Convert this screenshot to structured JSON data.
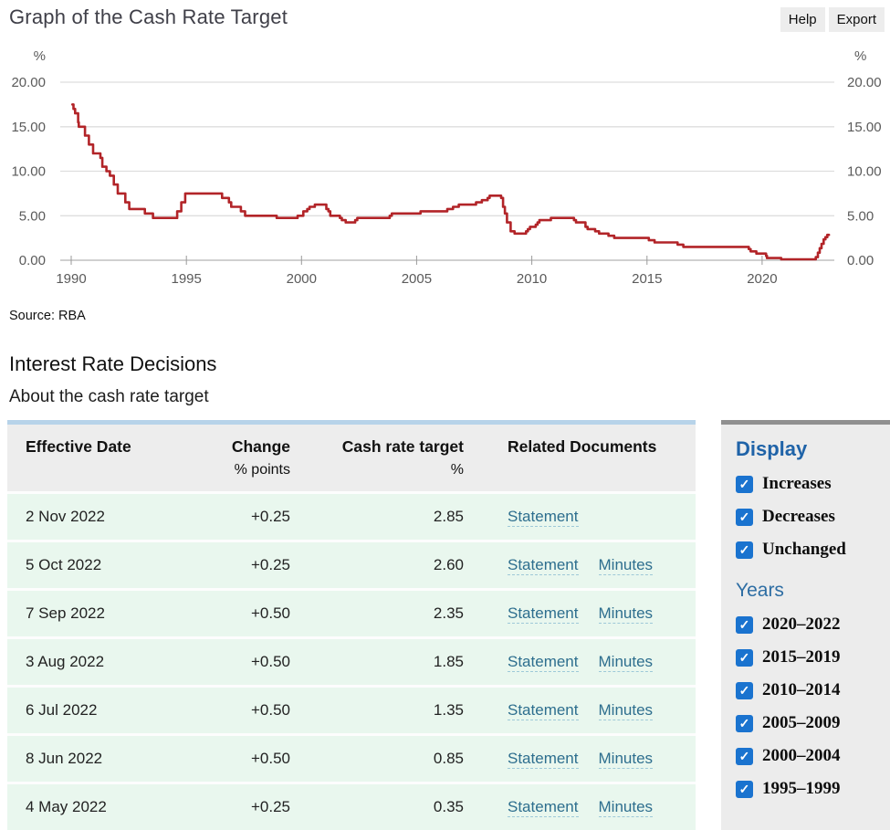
{
  "colors": {
    "accent_blue": "#1f63a8",
    "link": "#2d6e8e",
    "row_green": "#e9f7ee",
    "line_red": "#b22428",
    "table_top_border": "#b7d3e9",
    "sidebar_top_border": "#909090",
    "panel_bg": "#ececec",
    "checkbox_blue": "#1a73cf"
  },
  "header": {
    "title": "Graph of the Cash Rate Target",
    "help_label": "Help",
    "export_label": "Export"
  },
  "chart": {
    "left_unit": "%",
    "right_unit": "%",
    "y_ticks": [
      "20.00",
      "15.00",
      "10.00",
      "5.00",
      "0.00"
    ],
    "x_ticks": [
      "1990",
      "1995",
      "2000",
      "2005",
      "2010",
      "2015",
      "2020"
    ],
    "source": "Source: RBA"
  },
  "chart_data": {
    "type": "line",
    "title": "Graph of the Cash Rate Target",
    "xlabel": "",
    "ylabel": "%",
    "ylim": [
      0,
      20
    ],
    "x_range": [
      1989.8,
      2023.2
    ],
    "grid": true,
    "interpolation": "step-after",
    "series": [
      {
        "name": "Cash rate target (%)",
        "points": [
          [
            1990.05,
            17.5
          ],
          [
            1990.1,
            17.0
          ],
          [
            1990.17,
            16.5
          ],
          [
            1990.3,
            15.5
          ],
          [
            1990.33,
            15.0
          ],
          [
            1990.6,
            14.0
          ],
          [
            1990.77,
            13.0
          ],
          [
            1990.95,
            12.0
          ],
          [
            1991.27,
            11.5
          ],
          [
            1991.35,
            10.5
          ],
          [
            1991.53,
            10.0
          ],
          [
            1991.68,
            9.5
          ],
          [
            1991.85,
            8.5
          ],
          [
            1992.02,
            7.5
          ],
          [
            1992.35,
            6.5
          ],
          [
            1992.52,
            5.75
          ],
          [
            1993.2,
            5.25
          ],
          [
            1993.55,
            4.75
          ],
          [
            1994.6,
            5.5
          ],
          [
            1994.78,
            6.5
          ],
          [
            1994.95,
            7.5
          ],
          [
            1996.55,
            7.0
          ],
          [
            1996.85,
            6.5
          ],
          [
            1996.95,
            6.0
          ],
          [
            1997.37,
            5.5
          ],
          [
            1997.55,
            5.0
          ],
          [
            1998.92,
            4.75
          ],
          [
            1999.83,
            5.0
          ],
          [
            2000.08,
            5.5
          ],
          [
            2000.25,
            5.75
          ],
          [
            2000.35,
            6.0
          ],
          [
            2000.58,
            6.25
          ],
          [
            2001.08,
            5.75
          ],
          [
            2001.17,
            5.5
          ],
          [
            2001.25,
            5.0
          ],
          [
            2001.67,
            4.75
          ],
          [
            2001.75,
            4.5
          ],
          [
            2001.92,
            4.25
          ],
          [
            2002.33,
            4.5
          ],
          [
            2002.42,
            4.75
          ],
          [
            2003.83,
            5.0
          ],
          [
            2003.92,
            5.25
          ],
          [
            2005.17,
            5.5
          ],
          [
            2006.33,
            5.75
          ],
          [
            2006.58,
            6.0
          ],
          [
            2006.83,
            6.25
          ],
          [
            2007.58,
            6.5
          ],
          [
            2007.83,
            6.75
          ],
          [
            2008.08,
            7.0
          ],
          [
            2008.17,
            7.25
          ],
          [
            2008.67,
            7.0
          ],
          [
            2008.75,
            6.0
          ],
          [
            2008.83,
            5.25
          ],
          [
            2008.92,
            4.25
          ],
          [
            2009.08,
            3.25
          ],
          [
            2009.25,
            3.0
          ],
          [
            2009.75,
            3.25
          ],
          [
            2009.83,
            3.5
          ],
          [
            2009.92,
            3.75
          ],
          [
            2010.17,
            4.0
          ],
          [
            2010.25,
            4.25
          ],
          [
            2010.33,
            4.5
          ],
          [
            2010.83,
            4.75
          ],
          [
            2011.83,
            4.5
          ],
          [
            2011.92,
            4.25
          ],
          [
            2012.33,
            3.75
          ],
          [
            2012.42,
            3.5
          ],
          [
            2012.75,
            3.25
          ],
          [
            2012.92,
            3.0
          ],
          [
            2013.33,
            2.75
          ],
          [
            2013.58,
            2.5
          ],
          [
            2015.08,
            2.25
          ],
          [
            2015.33,
            2.0
          ],
          [
            2016.33,
            1.75
          ],
          [
            2016.58,
            1.5
          ],
          [
            2019.42,
            1.25
          ],
          [
            2019.5,
            1.0
          ],
          [
            2019.75,
            0.75
          ],
          [
            2020.17,
            0.5
          ],
          [
            2020.21,
            0.25
          ],
          [
            2020.83,
            0.1
          ],
          [
            2022.33,
            0.35
          ],
          [
            2022.42,
            0.85
          ],
          [
            2022.5,
            1.35
          ],
          [
            2022.58,
            1.85
          ],
          [
            2022.67,
            2.35
          ],
          [
            2022.75,
            2.6
          ],
          [
            2022.83,
            2.85
          ]
        ]
      }
    ]
  },
  "source": "Source: RBA",
  "sections": {
    "heading": "Interest Rate Decisions",
    "subheading": "About the cash rate target"
  },
  "table": {
    "columns": [
      {
        "label": "Effective Date",
        "sub": ""
      },
      {
        "label": "Change",
        "sub": "% points"
      },
      {
        "label": "Cash rate target",
        "sub": "%"
      },
      {
        "label": "Related Documents",
        "sub": ""
      }
    ],
    "rows": [
      {
        "date": "2 Nov 2022",
        "change": "+0.25",
        "target": "2.85",
        "links": [
          "Statement"
        ]
      },
      {
        "date": "5 Oct 2022",
        "change": "+0.25",
        "target": "2.60",
        "links": [
          "Statement",
          "Minutes"
        ]
      },
      {
        "date": "7 Sep 2022",
        "change": "+0.50",
        "target": "2.35",
        "links": [
          "Statement",
          "Minutes"
        ]
      },
      {
        "date": "3 Aug 2022",
        "change": "+0.50",
        "target": "1.85",
        "links": [
          "Statement",
          "Minutes"
        ]
      },
      {
        "date": "6 Jul 2022",
        "change": "+0.50",
        "target": "1.35",
        "links": [
          "Statement",
          "Minutes"
        ]
      },
      {
        "date": "8 Jun 2022",
        "change": "+0.50",
        "target": "0.85",
        "links": [
          "Statement",
          "Minutes"
        ]
      },
      {
        "date": "4 May 2022",
        "change": "+0.25",
        "target": "0.35",
        "links": [
          "Statement",
          "Minutes"
        ]
      }
    ]
  },
  "sidebar": {
    "display_heading": "Display",
    "display_options": [
      {
        "label": "Increases",
        "checked": true
      },
      {
        "label": "Decreases",
        "checked": true
      },
      {
        "label": "Unchanged",
        "checked": true
      }
    ],
    "years_heading": "Years",
    "year_options": [
      {
        "label": "2020–2022",
        "checked": true
      },
      {
        "label": "2015–2019",
        "checked": true
      },
      {
        "label": "2010–2014",
        "checked": true
      },
      {
        "label": "2005–2009",
        "checked": true
      },
      {
        "label": "2000–2004",
        "checked": true
      },
      {
        "label": "1995–1999",
        "checked": true
      }
    ]
  }
}
